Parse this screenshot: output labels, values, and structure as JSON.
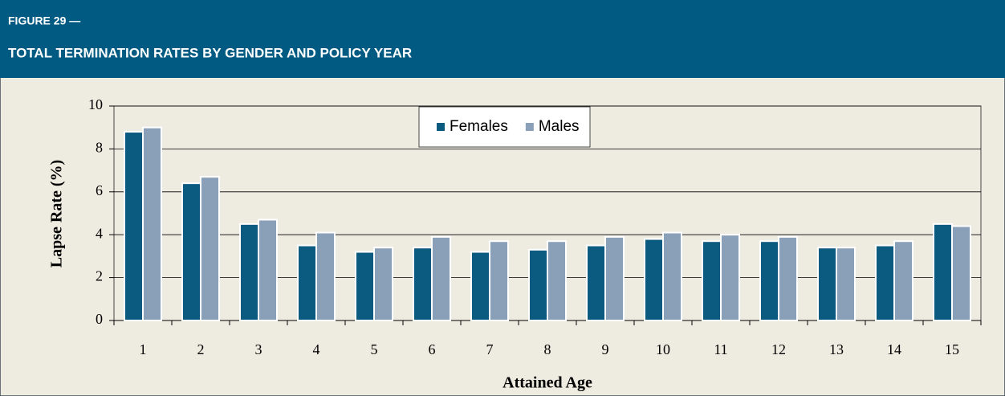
{
  "chart_data": {
    "type": "bar",
    "figure_label": "FIGURE 29 —",
    "title": "TOTAL TERMINATION RATES BY GENDER AND POLICY YEAR",
    "x_label": "Attained Age",
    "y_label": "Lapse Rate (%)",
    "categories": [
      "1",
      "2",
      "3",
      "4",
      "5",
      "6",
      "7",
      "8",
      "9",
      "10",
      "11",
      "12",
      "13",
      "14",
      "15"
    ],
    "series": [
      {
        "name": "Females",
        "color": "#0b5a80",
        "values": [
          8.8,
          6.4,
          4.5,
          3.5,
          3.2,
          3.4,
          3.2,
          3.3,
          3.5,
          3.8,
          3.7,
          3.7,
          3.4,
          3.5,
          4.5
        ]
      },
      {
        "name": "Males",
        "color": "#8aa0b8",
        "values": [
          9.0,
          6.7,
          4.7,
          4.1,
          3.4,
          3.9,
          3.7,
          3.7,
          3.9,
          4.1,
          4.0,
          3.9,
          3.4,
          3.7,
          4.4
        ]
      }
    ],
    "ylim": [
      0,
      10
    ],
    "yticks": [
      0,
      2,
      4,
      6,
      8,
      10
    ],
    "grid": true,
    "legend": "top"
  }
}
